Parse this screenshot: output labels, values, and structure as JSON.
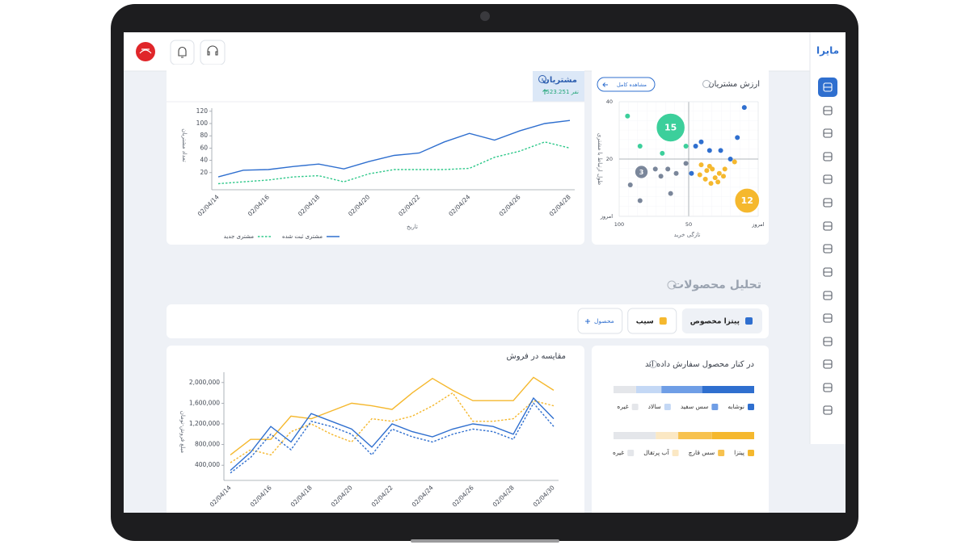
{
  "sidebar": {
    "logo": "مایرا"
  },
  "customers_card": {
    "tab_title": "مشتریان",
    "tab_count": "523.251 نفر"
  },
  "customer_value_card": {
    "button": "مشاهده کامل"
  },
  "section_title": "تحلیل محصولات",
  "product_chips": [
    {
      "label": "پیتزا مخصوص",
      "color": "#2f6fcf"
    },
    {
      "label": "سیب",
      "color": "#f5b82e"
    }
  ],
  "add_product": "محصول",
  "chart_data": [
    {
      "type": "line",
      "x_label": "تاریخ",
      "y_label": "تعداد مشتریان",
      "categories": [
        "02/04/14",
        null,
        "02/04/16",
        null,
        "02/04/18",
        null,
        "02/04/20",
        null,
        "02/04/22",
        null,
        "02/04/24",
        null,
        "02/04/26",
        null,
        "02/04/28"
      ],
      "series": [
        {
          "name": "مشتری ثبت شده",
          "color": "#2f6fcf",
          "style": "solid",
          "values": [
            13,
            24,
            25,
            30,
            34,
            26,
            38,
            48,
            52,
            70,
            84,
            73,
            88,
            100,
            105
          ]
        },
        {
          "name": "مشتری جدید",
          "color": "#2ec88a",
          "style": "dashed",
          "values": [
            2,
            5,
            8,
            13,
            15,
            5,
            18,
            25,
            25,
            25,
            27,
            45,
            55,
            70,
            60
          ]
        }
      ],
      "ylim": [
        0,
        125
      ],
      "yticks": [
        20,
        40,
        60,
        80,
        100,
        120
      ]
    },
    {
      "type": "scatter",
      "title": "ارزش مشتریان",
      "x_label": "تازگی خرید",
      "y_label": "طول ارتباط با مشتری",
      "xlim": [
        100,
        0
      ],
      "xticks": [
        100,
        50,
        {
          "value": 0,
          "label": "امروز"
        }
      ],
      "ylim": [
        0,
        40
      ],
      "yticks": [
        {
          "value": 0,
          "label": "امروز"
        },
        20,
        40
      ],
      "grid": true,
      "series": [
        {
          "color": "#3ccf9b",
          "x": [
            94,
            85,
            69,
            52
          ],
          "y": [
            35,
            24.5,
            22,
            24.5
          ]
        },
        {
          "color": "#2f6fcf",
          "x": [
            10,
            15,
            41,
            35,
            27,
            45,
            20,
            48
          ],
          "y": [
            38,
            27.5,
            26,
            23,
            23,
            24.5,
            20,
            15
          ]
        },
        {
          "color": "#7a869a",
          "x": [
            92,
            85,
            74,
            70,
            65,
            63,
            52,
            59
          ],
          "y": [
            11,
            5.5,
            16.5,
            14,
            16.5,
            8,
            18.5,
            15
          ]
        },
        {
          "color": "#f5b82e",
          "x": [
            41,
            37,
            33,
            28,
            42,
            38,
            34,
            29,
            25,
            17,
            35,
            31,
            24
          ],
          "y": [
            18,
            16,
            16.5,
            15,
            14.5,
            13,
            11.5,
            12,
            14,
            19,
            17.5,
            13.5,
            16.5
          ]
        },
        {
          "color": "#3ccf9b",
          "x": [
            63
          ],
          "y": [
            31
          ],
          "sizes": [
            15
          ]
        },
        {
          "color": "#7a869a",
          "x": [
            84
          ],
          "y": [
            15.5
          ],
          "sizes": [
            3
          ]
        },
        {
          "color": "#f5b82e",
          "x": [
            8
          ],
          "y": [
            5.5
          ],
          "sizes": [
            12
          ]
        }
      ]
    },
    {
      "type": "line",
      "title": "مقایسه در فروش",
      "y_label": "مبلغ فروش-تومان",
      "categories": [
        "02/04/14",
        null,
        "02/04/16",
        null,
        "02/04/18",
        null,
        "02/04/20",
        null,
        "02/04/22",
        null,
        "02/04/24",
        null,
        "02/04/26",
        null,
        "02/04/28",
        null,
        "02/04/30"
      ],
      "series": [
        {
          "color": "#f5b82e",
          "style": "solid",
          "values": [
            600000,
            900000,
            900000,
            1350000,
            1300000,
            1450000,
            1600000,
            1550000,
            1480000,
            1800000,
            2080000,
            1850000,
            1650000,
            1650000,
            1650000,
            2100000,
            1850000
          ]
        },
        {
          "color": "#f5b82e",
          "style": "dashed",
          "values": [
            450000,
            700000,
            600000,
            1050000,
            1200000,
            1000000,
            850000,
            1300000,
            1250000,
            1350000,
            1550000,
            1800000,
            1250000,
            1250000,
            1300000,
            1650000,
            1550000
          ]
        },
        {
          "color": "#2f6fcf",
          "style": "solid",
          "values": [
            300000,
            650000,
            1150000,
            850000,
            1400000,
            1250000,
            1100000,
            750000,
            1200000,
            1050000,
            950000,
            1100000,
            1200000,
            1150000,
            1000000,
            1700000,
            1300000
          ]
        },
        {
          "color": "#2f6fcf",
          "style": "dashed",
          "values": [
            250000,
            550000,
            1000000,
            700000,
            1250000,
            1150000,
            1000000,
            600000,
            1100000,
            950000,
            850000,
            1000000,
            1100000,
            1050000,
            900000,
            1600000,
            1150000
          ]
        }
      ],
      "ylim": [
        200000,
        2200000
      ],
      "yticks": [
        {
          "value": 400000,
          "label": "400,000"
        },
        {
          "value": 800000,
          "label": "800,000"
        },
        {
          "value": 1200000,
          "label": "1,200,000"
        },
        {
          "value": 1600000,
          "label": "1,600,000"
        },
        {
          "value": 2000000,
          "label": "2,000,000"
        }
      ]
    },
    {
      "type": "stacked_bar",
      "title": "در کنار محصول سفارش داده اند",
      "xlim": [
        0,
        100
      ],
      "bars": [
        {
          "segments": [
            {
              "name": "نوشابه",
              "color": "#2f6fcf",
              "value": 37
            },
            {
              "name": "سس سفید",
              "color": "#6f9ee6",
              "value": 29
            },
            {
              "name": "سالاد",
              "color": "#c4d8f5",
              "value": 18
            },
            {
              "name": "غیره",
              "color": "#e4e6ea",
              "value": 16
            }
          ]
        },
        {
          "segments": [
            {
              "name": "پیتزا",
              "color": "#f5b82e",
              "value": 30
            },
            {
              "name": "سس قارچ",
              "color": "#f7c24f",
              "value": 24
            },
            {
              "name": "آب پرتقال",
              "color": "#fbe8c4",
              "value": 16
            },
            {
              "name": "غیره",
              "color": "#e4e6ea",
              "value": 30
            }
          ]
        }
      ]
    }
  ]
}
